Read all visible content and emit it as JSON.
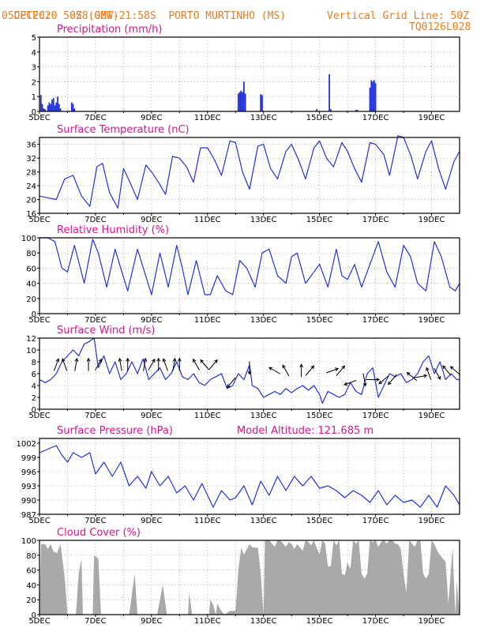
{
  "header": {
    "source": "CPTEC:",
    "coords": "058:08W-21:58S",
    "station": "PORTO MURTINHO (MS)",
    "run": "05DEC2020 50Z (GMT)",
    "grid_note": "Vertical Grid Line: 50Z",
    "model_code": "TQ0126L028"
  },
  "colors": {
    "header": "#f07c1c",
    "titles": "#e0148c",
    "series": "#2233dd",
    "cloud": "#a9a9a9",
    "frame": "#000000",
    "grid": "#888888"
  },
  "chart_data": [
    {
      "id": "precip",
      "type": "bar",
      "title": "Precipitation (mm/h)",
      "ylim": [
        0,
        5
      ],
      "yticks": [
        "0",
        "1",
        "2",
        "3",
        "4",
        "5"
      ],
      "xlim": [
        5,
        20
      ],
      "xticks": [
        "5DEC",
        "7DEC",
        "9DEC",
        "11DEC",
        "13DEC",
        "15DEC",
        "17DEC",
        "19DEC"
      ],
      "x": [
        5.05,
        5.1,
        5.15,
        5.2,
        5.3,
        5.35,
        5.4,
        5.45,
        5.5,
        5.55,
        5.6,
        5.65,
        5.7,
        5.75,
        6.15,
        6.2,
        6.25,
        12.1,
        12.15,
        12.2,
        12.25,
        12.3,
        12.35,
        12.9,
        12.95,
        14.9,
        15.35,
        15.4,
        16.3,
        16.35,
        16.8,
        16.85,
        16.9,
        16.95,
        17.0
      ],
      "values": [
        1.1,
        0.5,
        0.2,
        0.15,
        0.4,
        0.6,
        0.5,
        0.8,
        0.9,
        0.4,
        0.6,
        1.0,
        0.5,
        0.2,
        0.6,
        0.5,
        0.2,
        1.2,
        1.3,
        1.4,
        1.3,
        2.0,
        1.2,
        1.15,
        1.1,
        0.15,
        2.5,
        0.15,
        0.1,
        0.1,
        1.6,
        2.1,
        2.0,
        2.1,
        1.9
      ]
    },
    {
      "id": "temp",
      "type": "line",
      "title": "Surface Temperature (nC)",
      "ylim": [
        16,
        38
      ],
      "yticks": [
        "16",
        "20",
        "24",
        "28",
        "32",
        "36"
      ],
      "ytick_values": [
        16,
        20,
        24,
        28,
        32,
        36
      ],
      "xlim": [
        5,
        20
      ],
      "xticks": [
        "5DEC",
        "7DEC",
        "9DEC",
        "11DEC",
        "13DEC",
        "15DEC",
        "17DEC",
        "19DEC"
      ],
      "x": [
        5,
        5.3,
        5.6,
        5.9,
        6.2,
        6.5,
        6.8,
        7.05,
        7.25,
        7.5,
        7.8,
        8.0,
        8.2,
        8.5,
        8.8,
        9.0,
        9.25,
        9.5,
        9.75,
        10.0,
        10.25,
        10.5,
        10.75,
        11.0,
        11.25,
        11.5,
        11.8,
        12.0,
        12.25,
        12.5,
        12.8,
        13.0,
        13.25,
        13.5,
        13.8,
        14.0,
        14.25,
        14.5,
        14.8,
        15.0,
        15.25,
        15.5,
        15.8,
        16.0,
        16.25,
        16.5,
        16.8,
        17.0,
        17.3,
        17.5,
        17.8,
        18.0,
        18.25,
        18.5,
        18.8,
        19.0,
        19.25,
        19.5,
        19.8,
        20.0
      ],
      "values": [
        21,
        20.5,
        20,
        26,
        27,
        21,
        18,
        29.5,
        30.5,
        22,
        17.5,
        29,
        25.5,
        20,
        30,
        28,
        25,
        21.5,
        32.5,
        32,
        29.5,
        25,
        35,
        35,
        31.5,
        27,
        37,
        36.5,
        28,
        23,
        35.5,
        36,
        29,
        26,
        34,
        36,
        31.5,
        26,
        35,
        37,
        32,
        29.5,
        36.5,
        34,
        29,
        25,
        36.5,
        36,
        33,
        27,
        38.5,
        38,
        33,
        26,
        34,
        37,
        29,
        23,
        31,
        34
      ]
    },
    {
      "id": "rh",
      "type": "line",
      "title": "Relative Humidity (%)",
      "ylim": [
        0,
        100
      ],
      "yticks": [
        "0",
        "20",
        "40",
        "60",
        "80",
        "100"
      ],
      "ytick_values": [
        0,
        20,
        40,
        60,
        80,
        100
      ],
      "xlim": [
        5,
        20
      ],
      "xticks": [
        "5DEC",
        "7DEC",
        "9DEC",
        "11DEC",
        "13DEC",
        "15DEC",
        "17DEC",
        "19DEC"
      ],
      "x": [
        5,
        5.3,
        5.55,
        5.8,
        6.0,
        6.25,
        6.6,
        6.9,
        7.1,
        7.4,
        7.7,
        7.9,
        8.15,
        8.5,
        8.75,
        9.0,
        9.3,
        9.6,
        9.9,
        10.1,
        10.3,
        10.6,
        10.9,
        11.1,
        11.35,
        11.65,
        11.9,
        12.15,
        12.4,
        12.7,
        12.95,
        13.2,
        13.5,
        13.8,
        14.0,
        14.2,
        14.5,
        14.8,
        15.0,
        15.3,
        15.6,
        15.8,
        16.0,
        16.25,
        16.5,
        16.8,
        17.1,
        17.4,
        17.7,
        18.0,
        18.25,
        18.5,
        18.8,
        19.1,
        19.35,
        19.65,
        19.85,
        20.0
      ],
      "values": [
        100,
        100,
        95,
        60,
        55,
        90,
        40,
        98,
        80,
        35,
        85,
        60,
        30,
        85,
        55,
        25,
        80,
        35,
        90,
        60,
        25,
        70,
        25,
        25,
        50,
        30,
        25,
        70,
        60,
        35,
        80,
        85,
        50,
        40,
        75,
        80,
        40,
        55,
        65,
        35,
        85,
        50,
        45,
        65,
        35,
        65,
        95,
        55,
        35,
        90,
        75,
        40,
        30,
        95,
        75,
        35,
        30,
        40
      ]
    },
    {
      "id": "wind",
      "type": "line",
      "title": "Surface Wind (m/s)",
      "ylim": [
        0,
        12
      ],
      "yticks": [
        "0",
        "2",
        "4",
        "6",
        "8",
        "10",
        "12"
      ],
      "ytick_values": [
        0,
        2,
        4,
        6,
        8,
        10,
        12
      ],
      "xlim": [
        5,
        20
      ],
      "xticks": [
        "5DEC",
        "7DEC",
        "9DEC",
        "11DEC",
        "13DEC",
        "15DEC",
        "17DEC",
        "19DEC"
      ],
      "x": [
        5,
        5.2,
        5.4,
        5.6,
        5.8,
        6.0,
        6.2,
        6.4,
        6.6,
        6.8,
        6.95,
        7.1,
        7.3,
        7.5,
        7.7,
        7.9,
        8.1,
        8.3,
        8.5,
        8.7,
        8.9,
        9.1,
        9.3,
        9.5,
        9.7,
        9.9,
        10.1,
        10.3,
        10.5,
        10.7,
        10.9,
        11.1,
        11.3,
        11.5,
        11.7,
        11.9,
        12.1,
        12.3,
        12.5,
        12.6,
        12.8,
        13.0,
        13.2,
        13.4,
        13.6,
        13.8,
        14.0,
        14.2,
        14.4,
        14.6,
        14.8,
        15.0,
        15.1,
        15.3,
        15.5,
        15.7,
        15.9,
        16.1,
        16.3,
        16.5,
        16.7,
        16.9,
        17.1,
        17.3,
        17.5,
        17.7,
        17.9,
        18.1,
        18.3,
        18.5,
        18.7,
        18.9,
        19.1,
        19.3,
        19.5,
        19.7,
        19.9,
        20.0
      ],
      "values": [
        5,
        4.5,
        5,
        6,
        8,
        9,
        10,
        9,
        11,
        11.5,
        12,
        7,
        9,
        6,
        8,
        5,
        6,
        8,
        6,
        8.5,
        5,
        6,
        7,
        5,
        6,
        8,
        5.5,
        5,
        6,
        4.5,
        4,
        5,
        5.5,
        6,
        3.5,
        4,
        6,
        5,
        7.5,
        4,
        3.5,
        2,
        2.5,
        3,
        2.5,
        3.5,
        2.8,
        3.5,
        4,
        3.2,
        4,
        2.5,
        1,
        3,
        2.5,
        2,
        2.5,
        4.5,
        3,
        2.5,
        6,
        7,
        2,
        4,
        6,
        5.5,
        6,
        4.5,
        5,
        6,
        8,
        9,
        6,
        8,
        5,
        6,
        5,
        5
      ]
    },
    {
      "id": "pres",
      "type": "line",
      "title": "Surface Pressure (hPa)",
      "annotation": "Model Altitude: 121.685 m",
      "ylim": [
        987,
        1003
      ],
      "yticks": [
        "987",
        "990",
        "993",
        "996",
        "999",
        "1002"
      ],
      "ytick_values": [
        987,
        990,
        993,
        996,
        999,
        1002
      ],
      "xlim": [
        5,
        20
      ],
      "xticks": [
        "5DEC",
        "7DEC",
        "9DEC",
        "11DEC",
        "13DEC",
        "15DEC",
        "17DEC",
        "19DEC"
      ],
      "x": [
        5,
        5.2,
        5.4,
        5.6,
        5.8,
        6.0,
        6.2,
        6.5,
        6.8,
        7.0,
        7.3,
        7.6,
        7.9,
        8.2,
        8.5,
        8.8,
        9.0,
        9.3,
        9.6,
        9.9,
        10.2,
        10.5,
        10.8,
        11.0,
        11.2,
        11.5,
        11.8,
        12.0,
        12.3,
        12.6,
        12.9,
        13.2,
        13.5,
        13.8,
        14.1,
        14.4,
        14.7,
        15.0,
        15.3,
        15.6,
        15.9,
        16.2,
        16.5,
        16.8,
        17.1,
        17.4,
        17.7,
        18.0,
        18.3,
        18.6,
        18.9,
        19.2,
        19.5,
        19.8,
        20.0
      ],
      "values": [
        1000,
        1000.5,
        1001,
        1001.5,
        999.5,
        998,
        1000,
        999,
        1000,
        995.5,
        998,
        995,
        998,
        993,
        995,
        992.5,
        996,
        993,
        995,
        991.5,
        993,
        990,
        993.5,
        991,
        988.5,
        992,
        990,
        990.5,
        993,
        989,
        994,
        991,
        995,
        992,
        995,
        993,
        995,
        992.5,
        993,
        992,
        990.5,
        992,
        991,
        989.5,
        992,
        989,
        991,
        989.5,
        990,
        988.5,
        991,
        988.5,
        993,
        991,
        989
      ]
    },
    {
      "id": "cloud",
      "type": "area",
      "title": "Cloud Cover (%)",
      "ylim": [
        0,
        100
      ],
      "yticks": [
        "0",
        "20",
        "40",
        "60",
        "80",
        "100"
      ],
      "ytick_values": [
        0,
        20,
        40,
        60,
        80,
        100
      ],
      "xlim": [
        5,
        20
      ],
      "xticks": [
        "5DEC",
        "7DEC",
        "9DEC",
        "11DEC",
        "13DEC",
        "15DEC",
        "17DEC",
        "19DEC"
      ],
      "x": [
        5,
        5.05,
        5.2,
        5.5,
        5.75,
        5.9,
        6.0,
        6.1,
        6.3,
        6.4,
        6.5,
        6.55,
        6.9,
        6.95,
        7.1,
        7.2,
        7.5,
        8.0,
        8.2,
        8.4,
        8.5,
        9.0,
        9.2,
        9.4,
        9.55,
        10.0,
        10.3,
        10.35,
        10.45,
        10.7,
        11.0,
        11.05,
        11.1,
        11.3,
        11.35,
        11.6,
        11.8,
        12.0,
        12.1,
        12.2,
        12.5,
        12.7,
        12.9,
        13.0,
        13.05,
        13.2,
        13.5,
        14.0,
        14.5,
        14.9,
        15.1,
        15.3,
        15.5,
        15.8,
        16.0,
        16.2,
        16.4,
        16.5,
        16.8,
        17.0,
        17.3,
        17.5,
        17.8,
        18.0,
        18.1,
        18.2,
        18.5,
        18.7,
        19.0,
        19.1,
        19.3,
        19.6,
        19.75,
        19.85,
        19.9,
        20.0
      ],
      "values": [
        0,
        95,
        95,
        85,
        95,
        50,
        0,
        0,
        0,
        55,
        75,
        0,
        0,
        80,
        75,
        0,
        0,
        0,
        0,
        55,
        0,
        0,
        0,
        40,
        0,
        0,
        0,
        30,
        0,
        0,
        0,
        0,
        20,
        0,
        15,
        0,
        5,
        5,
        60,
        90,
        95,
        90,
        55,
        0,
        100,
        100,
        100,
        95,
        100,
        90,
        100,
        65,
        100,
        55,
        70,
        100,
        100,
        55,
        100,
        100,
        100,
        100,
        95,
        55,
        30,
        100,
        100,
        55,
        100,
        95,
        80,
        15,
        90,
        0,
        45,
        0
      ]
    }
  ],
  "wind_arrows": [
    {
      "x": 5.6,
      "y": 7.5,
      "deg": 20
    },
    {
      "x": 5.9,
      "y": 7.5,
      "deg": -20
    },
    {
      "x": 6.3,
      "y": 7.5,
      "deg": 10
    },
    {
      "x": 6.75,
      "y": 7.5,
      "deg": 0
    },
    {
      "x": 7.1,
      "y": 7.5,
      "deg": 30
    },
    {
      "x": 7.9,
      "y": 7.5,
      "deg": -10
    },
    {
      "x": 8.15,
      "y": 7.5,
      "deg": 0
    },
    {
      "x": 8.75,
      "y": 7.5,
      "deg": 10
    },
    {
      "x": 9.0,
      "y": 7.5,
      "deg": 30
    },
    {
      "x": 9.25,
      "y": 7.5,
      "deg": 0
    },
    {
      "x": 9.5,
      "y": 7.5,
      "deg": -20
    },
    {
      "x": 9.8,
      "y": 7.5,
      "deg": 10
    },
    {
      "x": 10.0,
      "y": 7.5,
      "deg": 0
    },
    {
      "x": 10.6,
      "y": 7.5,
      "deg": -30
    },
    {
      "x": 10.9,
      "y": 7.5,
      "deg": -40
    },
    {
      "x": 11.2,
      "y": 7.5,
      "deg": 40
    },
    {
      "x": 11.85,
      "y": 4.5,
      "deg": -140
    },
    {
      "x": 12.5,
      "y": 7.0,
      "deg": 180
    },
    {
      "x": 13.4,
      "y": 6.5,
      "deg": -60
    },
    {
      "x": 13.8,
      "y": 6.5,
      "deg": -30
    },
    {
      "x": 14.35,
      "y": 6.5,
      "deg": 0
    },
    {
      "x": 14.65,
      "y": 6.5,
      "deg": 40
    },
    {
      "x": 15.45,
      "y": 6.5,
      "deg": 70
    },
    {
      "x": 15.75,
      "y": 6.5,
      "deg": 40
    },
    {
      "x": 16.1,
      "y": 4.5,
      "deg": -110
    },
    {
      "x": 16.6,
      "y": 5.0,
      "deg": 170
    },
    {
      "x": 16.9,
      "y": 5.0,
      "deg": 90
    },
    {
      "x": 17.3,
      "y": 5.0,
      "deg": -130
    },
    {
      "x": 17.6,
      "y": 5.0,
      "deg": -140
    },
    {
      "x": 18.3,
      "y": 5.5,
      "deg": -50
    },
    {
      "x": 18.6,
      "y": 5.5,
      "deg": 80
    },
    {
      "x": 18.9,
      "y": 6.0,
      "deg": -20
    },
    {
      "x": 19.2,
      "y": 6.0,
      "deg": 150
    },
    {
      "x": 19.55,
      "y": 6.5,
      "deg": -40
    },
    {
      "x": 19.85,
      "y": 6.5,
      "deg": -50
    }
  ]
}
